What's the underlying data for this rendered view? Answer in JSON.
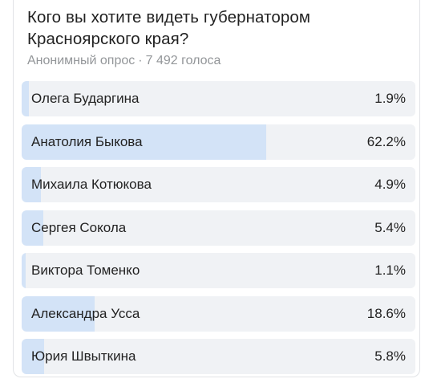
{
  "poll": {
    "question": "Кого вы хотите видеть губернатором Красноярского края?",
    "type_label": "Анонимный опрос",
    "separator": "·",
    "votes_label": "7 492 голоса",
    "options": [
      {
        "label": "Олега Бударгина",
        "percent_text": "1.9%",
        "percent": 1.9
      },
      {
        "label": "Анатолия Быкова",
        "percent_text": "62.2%",
        "percent": 62.2
      },
      {
        "label": "Михаила Котюкова",
        "percent_text": "4.9%",
        "percent": 4.9
      },
      {
        "label": "Сергея Сокола",
        "percent_text": "5.4%",
        "percent": 5.4
      },
      {
        "label": "Виктора Томенко",
        "percent_text": "1.1%",
        "percent": 1.1
      },
      {
        "label": "Александра Усса",
        "percent_text": "18.6%",
        "percent": 18.6
      },
      {
        "label": "Юрия Швыткина",
        "percent_text": "5.8%",
        "percent": 5.8
      }
    ]
  },
  "colors": {
    "bar_background": "#f0f2f5",
    "bar_fill": "#d3e3f7",
    "meta_text": "#939699"
  }
}
